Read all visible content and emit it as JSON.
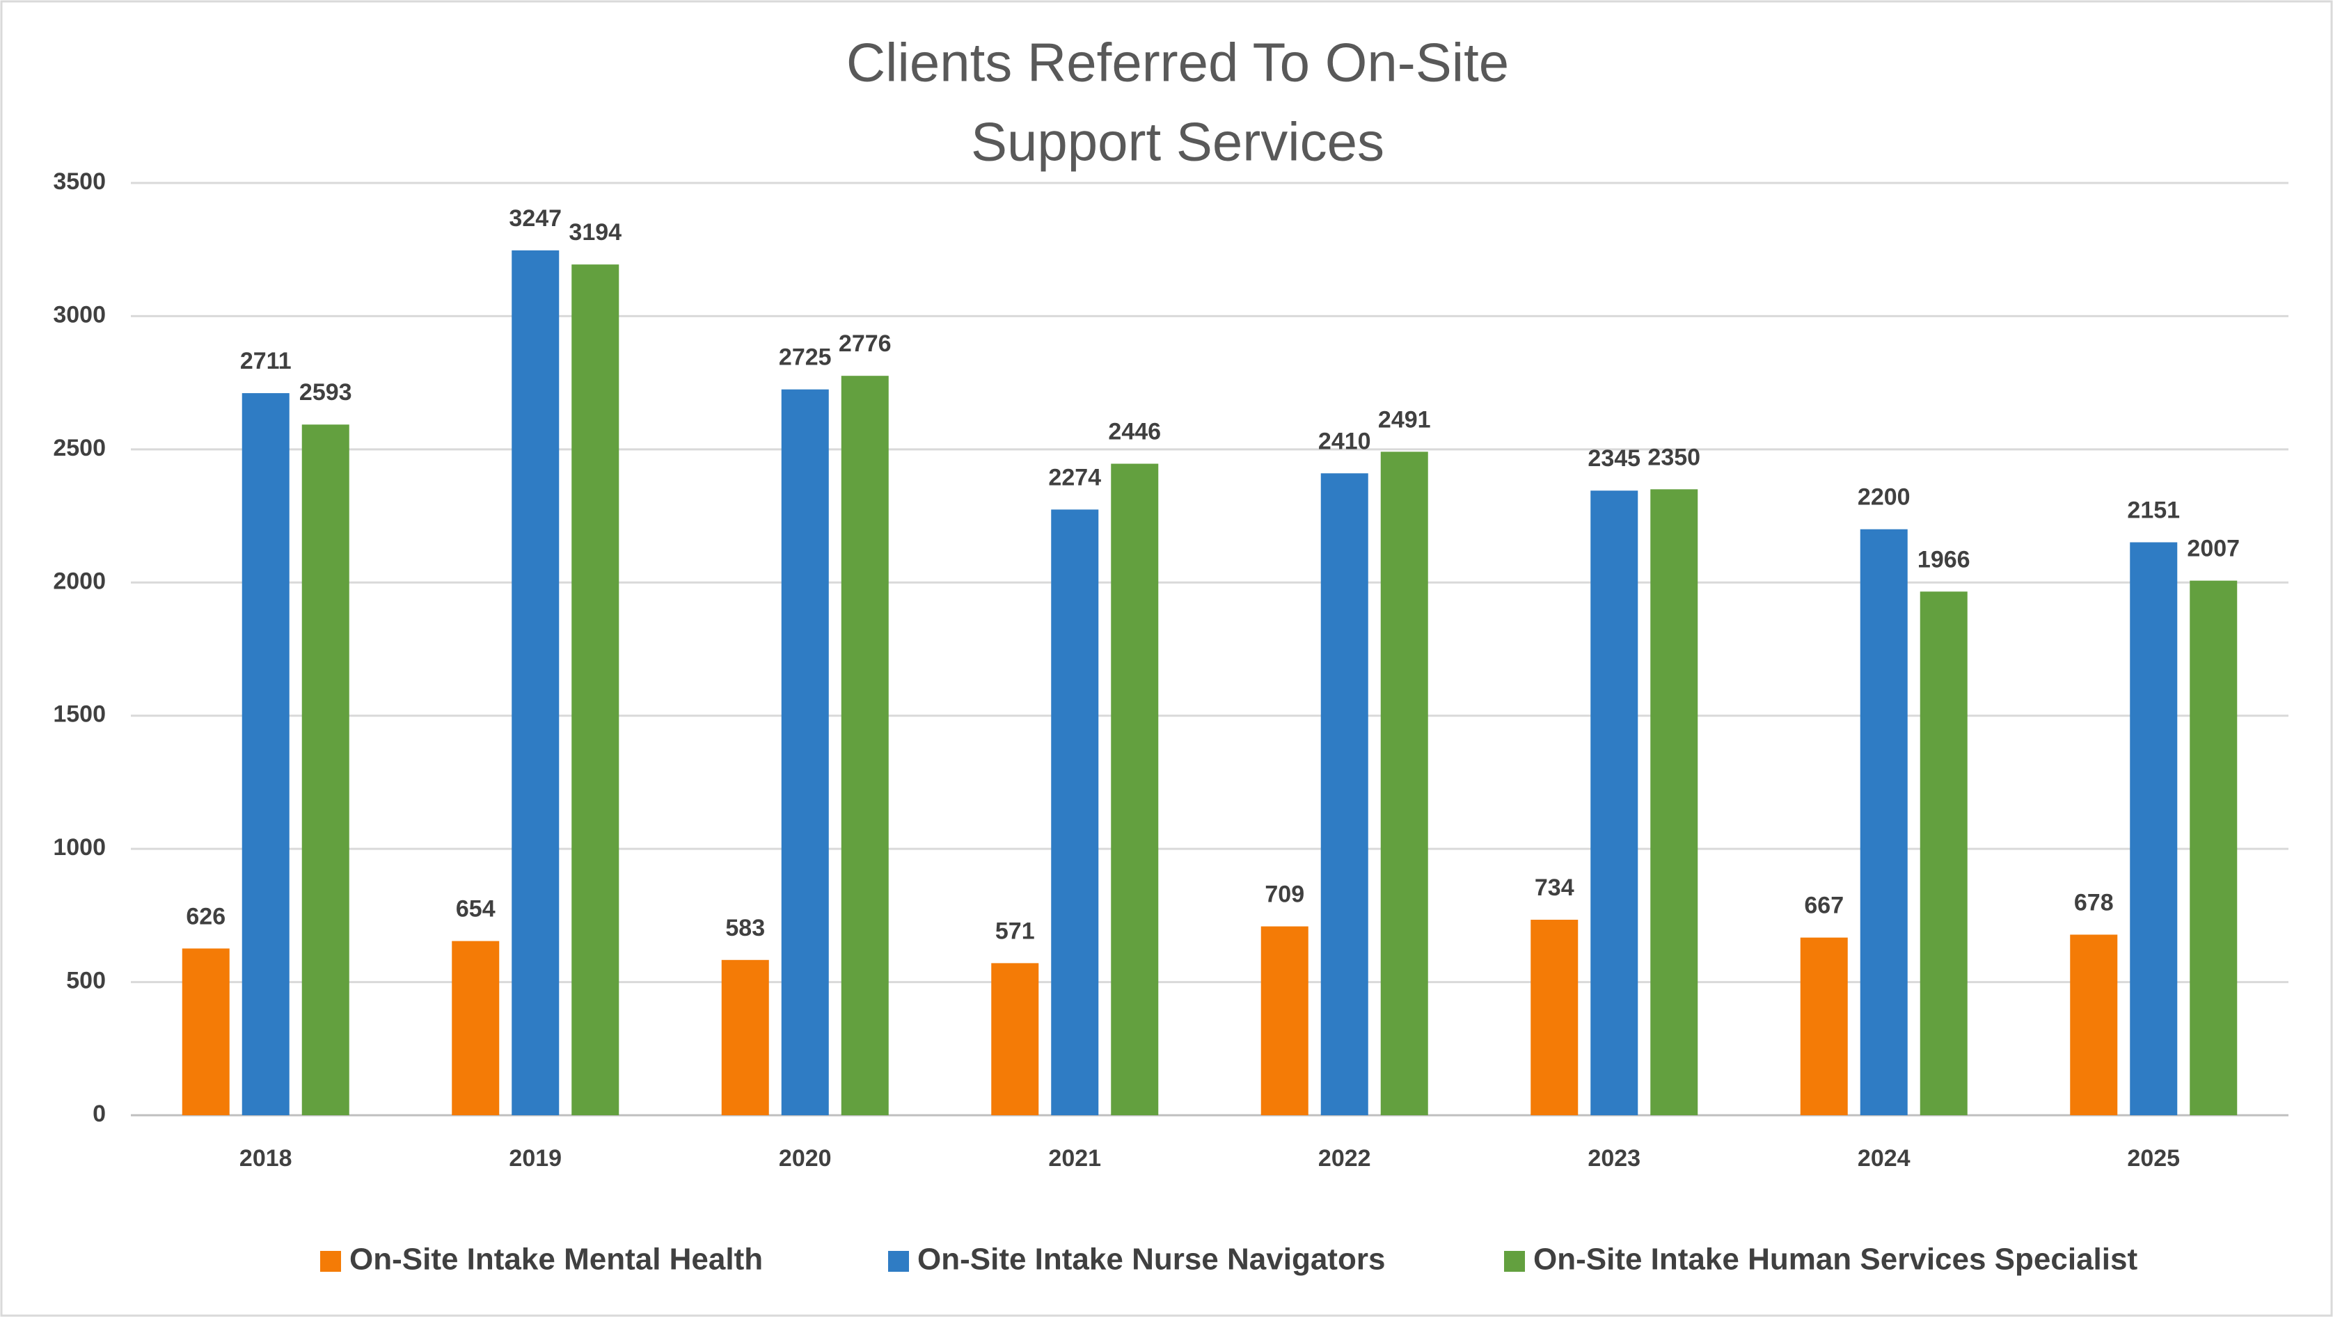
{
  "chart_data": {
    "type": "bar",
    "title": [
      "Clients Referred To On-Site",
      "Support Services"
    ],
    "categories": [
      "2018",
      "2019",
      "2020",
      "2021",
      "2022",
      "2023",
      "2024",
      "2025"
    ],
    "series": [
      {
        "name": "On-Site Intake Mental Health",
        "color": "#f47b06",
        "values": [
          626,
          654,
          583,
          571,
          709,
          734,
          667,
          678
        ]
      },
      {
        "name": "On-Site Intake Nurse Navigators",
        "color": "#2f7cc4",
        "values": [
          2711,
          3247,
          2725,
          2274,
          2410,
          2345,
          2200,
          2151
        ]
      },
      {
        "name": "On-Site Intake Human Services Specialist",
        "color": "#63a03f",
        "values": [
          2593,
          3194,
          2776,
          2446,
          2491,
          2350,
          1966,
          2007
        ]
      }
    ],
    "ylim": [
      0,
      3500
    ],
    "yticks": [
      0,
      500,
      1000,
      1500,
      2000,
      2500,
      3000,
      3500
    ],
    "grid": true,
    "legend": "bottom"
  }
}
